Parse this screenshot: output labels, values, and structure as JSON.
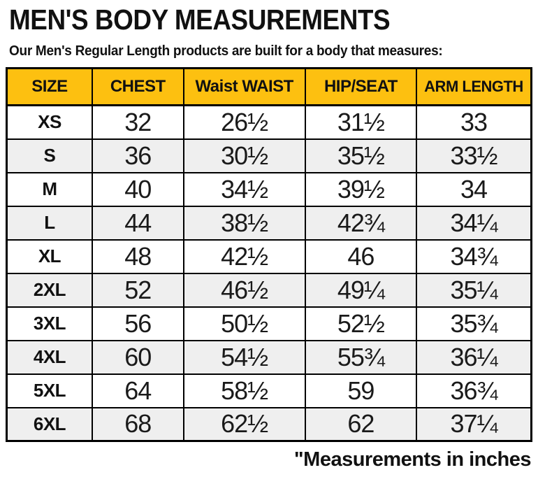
{
  "title": "MEN'S BODY MEASUREMENTS",
  "subtitle": "Our Men's Regular Length products are built for a body that measures:",
  "footer_note": "\"Measurements in inches",
  "colors": {
    "header_bg": "#FDC010",
    "row_alt_bg": "#EFEFEF",
    "border": "#000000",
    "text": "#111111"
  },
  "chart_data": {
    "type": "table",
    "title": "MEN'S BODY MEASUREMENTS",
    "columns": [
      "SIZE",
      "CHEST",
      "Waist WAIST",
      "HIP/SEAT",
      "ARM LENGTH"
    ],
    "rows": [
      {
        "size": "XS",
        "values": [
          "32",
          "26½",
          "31½",
          "33"
        ]
      },
      {
        "size": "S",
        "values": [
          "36",
          "30½",
          "35½",
          "33½"
        ]
      },
      {
        "size": "M",
        "values": [
          "40",
          "34½",
          "39½",
          "34"
        ]
      },
      {
        "size": "L",
        "values": [
          "44",
          "38½",
          "42¾",
          "34¼"
        ]
      },
      {
        "size": "XL",
        "values": [
          "48",
          "42½",
          "46",
          "34¾"
        ]
      },
      {
        "size": "2XL",
        "values": [
          "52",
          "46½",
          "49¼",
          "35¼"
        ]
      },
      {
        "size": "3XL",
        "values": [
          "56",
          "50½",
          "52½",
          "35¾"
        ]
      },
      {
        "size": "4XL",
        "values": [
          "60",
          "54½",
          "55¾",
          "36¼"
        ]
      },
      {
        "size": "5XL",
        "values": [
          "64",
          "58½",
          "59",
          "36¾"
        ]
      },
      {
        "size": "6XL",
        "values": [
          "68",
          "62½",
          "62",
          "37¼"
        ]
      }
    ]
  }
}
